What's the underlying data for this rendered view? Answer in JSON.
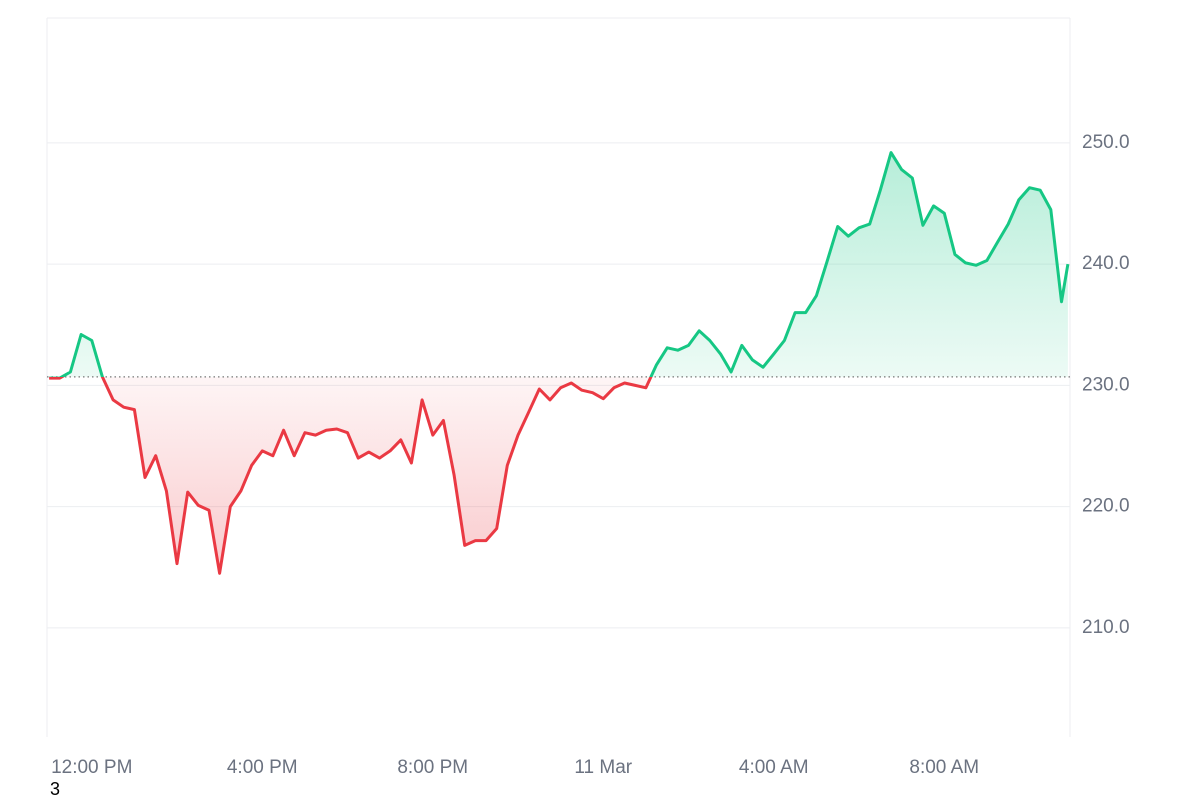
{
  "chart_data": {
    "type": "line",
    "x": [
      11,
      11.25,
      11.5,
      11.75,
      12,
      12.25,
      12.5,
      12.75,
      13,
      13.25,
      13.5,
      13.75,
      14,
      14.25,
      14.5,
      14.75,
      15,
      15.25,
      15.5,
      15.75,
      16,
      16.25,
      16.5,
      16.75,
      17,
      17.25,
      17.5,
      17.75,
      18,
      18.25,
      18.5,
      18.75,
      19,
      19.25,
      19.5,
      19.75,
      20,
      20.25,
      20.5,
      20.75,
      21,
      21.25,
      21.5,
      21.75,
      22,
      22.25,
      22.5,
      22.75,
      23,
      23.25,
      23.5,
      23.75,
      24,
      24.25,
      24.5,
      24.75,
      25,
      25.25,
      25.5,
      25.75,
      26,
      26.25,
      26.5,
      26.75,
      27,
      27.25,
      27.5,
      27.75,
      28,
      28.25,
      28.5,
      28.75,
      29,
      29.25,
      29.5,
      29.75,
      30,
      30.25,
      30.5,
      30.75,
      31,
      31.25,
      31.5,
      31.75,
      32,
      32.25,
      32.5,
      32.75,
      33,
      33.25,
      33.5,
      33.75,
      34,
      34.25,
      34.5,
      34.75,
      34.9
    ],
    "series": [
      {
        "values": [
          230.6,
          230.6,
          231.1,
          234.2,
          233.7,
          230.7,
          228.8,
          228.2,
          228.0,
          222.4,
          224.2,
          221.3,
          215.3,
          221.2,
          220.1,
          219.7,
          214.5,
          220.0,
          221.3,
          223.4,
          224.6,
          224.2,
          226.3,
          224.2,
          226.1,
          225.9,
          226.3,
          226.4,
          226.1,
          224.0,
          224.5,
          224.0,
          224.6,
          225.5,
          223.6,
          228.8,
          225.9,
          227.1,
          222.6,
          216.8,
          217.2,
          217.2,
          218.2,
          223.4,
          225.9,
          227.8,
          229.7,
          228.8,
          229.8,
          230.2,
          229.6,
          229.4,
          228.9,
          229.8,
          230.2,
          230.0,
          229.8,
          231.7,
          233.1,
          232.9,
          233.3,
          234.5,
          233.7,
          232.6,
          231.1,
          233.3,
          232.1,
          231.5,
          232.6,
          233.7,
          236.0,
          236.0,
          237.4,
          240.2,
          243.1,
          242.3,
          243.0,
          243.3,
          246.1,
          249.2,
          247.8,
          247.1,
          243.2,
          244.8,
          244.2,
          240.8,
          240.1,
          239.9,
          240.3,
          241.8,
          243.3,
          245.3,
          246.3,
          246.1,
          244.5,
          236.9,
          240.0
        ]
      }
    ],
    "baseline": 230.7,
    "up_color": "#16c784",
    "down_color": "#ea3943",
    "xlim": [
      10.95,
      34.95
    ],
    "xticks": [
      {
        "value": 12,
        "label": "12:00 PM"
      },
      {
        "value": 16,
        "label": "4:00 PM"
      },
      {
        "value": 20,
        "label": "8:00 PM"
      },
      {
        "value": 24,
        "label": "11 Mar"
      },
      {
        "value": 28,
        "label": "4:00 AM"
      },
      {
        "value": 32,
        "label": "8:00 AM"
      }
    ],
    "ylim": [
      201,
      260.3
    ],
    "yticks": [
      {
        "value": 210,
        "label": "210.0"
      },
      {
        "value": 220,
        "label": "220.0"
      },
      {
        "value": 230,
        "label": "230.0"
      },
      {
        "value": 240,
        "label": "240.0"
      },
      {
        "value": 250,
        "label": "250.0"
      }
    ],
    "grid": true,
    "footnote": "3"
  }
}
